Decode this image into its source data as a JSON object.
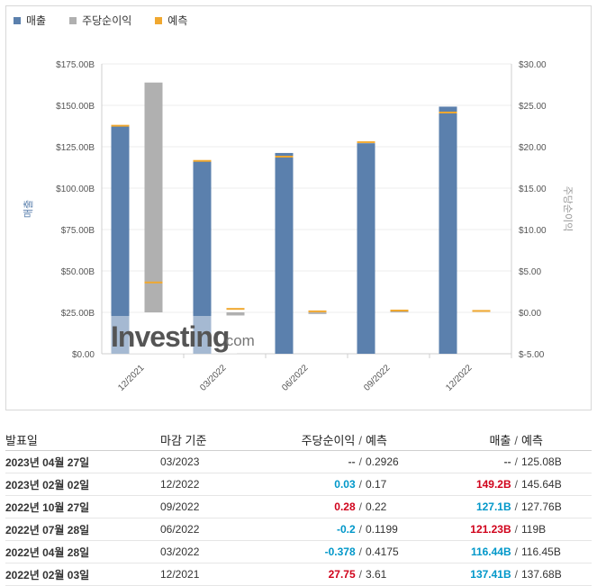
{
  "legend": {
    "revenue": "매출",
    "eps": "주당순이익",
    "forecast": "예측"
  },
  "colors": {
    "revenue": "#5b80ad",
    "eps": "#b0b0b0",
    "forecast": "#f0a830",
    "positive": "#0097c9",
    "negative": "#d0021b"
  },
  "chart_data": {
    "type": "bar",
    "categories": [
      "12/2021",
      "03/2022",
      "06/2022",
      "09/2022",
      "12/2022"
    ],
    "left_axis": {
      "label": "매출",
      "range": [
        0,
        175
      ],
      "ticks": [
        "$0.00",
        "$25.00B",
        "$50.00B",
        "$75.00B",
        "$100.00B",
        "$125.00B",
        "$150.00B",
        "$175.00B"
      ]
    },
    "right_axis": {
      "label": "주당순이익",
      "range": [
        -5,
        30
      ],
      "ticks": [
        "$-5.00",
        "$0.00",
        "$5.00",
        "$10.00",
        "$15.00",
        "$20.00",
        "$25.00",
        "$30.00"
      ]
    },
    "series": [
      {
        "name": "매출",
        "axis": "left",
        "values": [
          137.41,
          116.44,
          121.23,
          127.1,
          149.2
        ],
        "forecast": [
          137.68,
          116.45,
          119,
          127.76,
          145.64
        ]
      },
      {
        "name": "주당순이익",
        "axis": "right",
        "values": [
          27.75,
          -0.378,
          -0.2,
          0.28,
          0.03
        ],
        "forecast": [
          3.61,
          0.4175,
          0.1199,
          0.22,
          0.17
        ]
      }
    ],
    "watermark": {
      "brand": "Investing",
      "suffix": ".com"
    }
  },
  "table": {
    "headers": {
      "date": "발표일",
      "period": "마감 기준",
      "eps": "주당순이익",
      "eps_forecast": "예측",
      "revenue": "매출",
      "revenue_forecast": "예측"
    },
    "rows": [
      {
        "date": "2023년 04월 27일",
        "period": "03/2023",
        "eps": "--",
        "eps_class": "neutral",
        "eps_forecast": "0.2926",
        "revenue": "--",
        "revenue_class": "neutral",
        "revenue_forecast": "125.08B"
      },
      {
        "date": "2023년 02월 02일",
        "period": "12/2022",
        "eps": "0.03",
        "eps_class": "pos",
        "eps_forecast": "0.17",
        "revenue": "149.2B",
        "revenue_class": "neg",
        "revenue_forecast": "145.64B"
      },
      {
        "date": "2022년 10월 27일",
        "period": "09/2022",
        "eps": "0.28",
        "eps_class": "neg",
        "eps_forecast": "0.22",
        "revenue": "127.1B",
        "revenue_class": "pos",
        "revenue_forecast": "127.76B"
      },
      {
        "date": "2022년 07월 28일",
        "period": "06/2022",
        "eps": "-0.2",
        "eps_class": "pos",
        "eps_forecast": "0.1199",
        "revenue": "121.23B",
        "revenue_class": "neg",
        "revenue_forecast": "119B"
      },
      {
        "date": "2022년 04월 28일",
        "period": "03/2022",
        "eps": "-0.378",
        "eps_class": "pos",
        "eps_forecast": "0.4175",
        "revenue": "116.44B",
        "revenue_class": "pos",
        "revenue_forecast": "116.45B"
      },
      {
        "date": "2022년 02월 03일",
        "period": "12/2021",
        "eps": "27.75",
        "eps_class": "neg",
        "eps_forecast": "3.61",
        "revenue": "137.41B",
        "revenue_class": "pos",
        "revenue_forecast": "137.68B"
      }
    ]
  }
}
